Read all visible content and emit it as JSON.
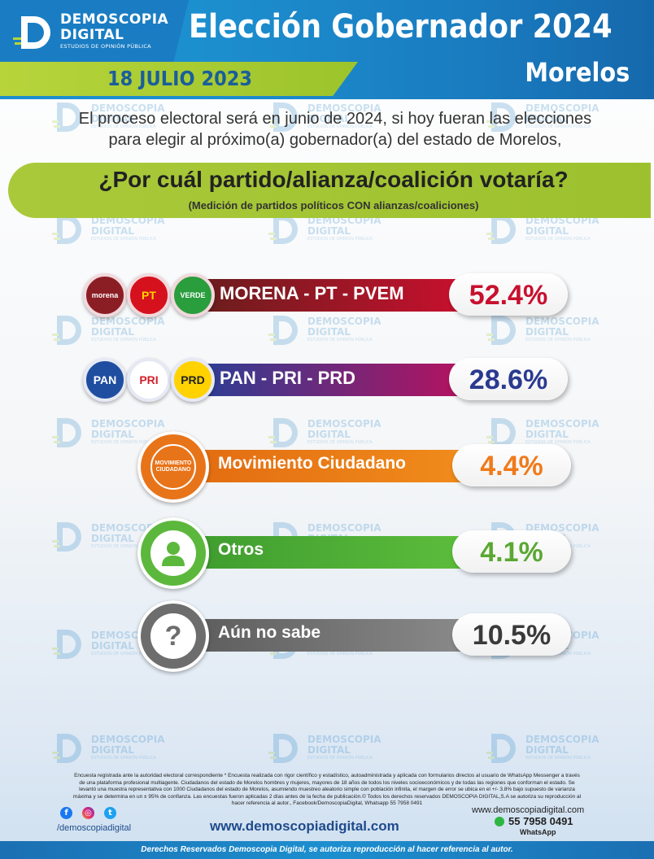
{
  "brand": {
    "name_line1": "DEMOSCOPIA",
    "name_line2": "DIGITAL",
    "tagline": "ESTUDIOS DE OPINIÓN PÚBLICA",
    "logo_letter": "D"
  },
  "header": {
    "title": "Elección Gobernador 2024",
    "date": "18 JULIO 2023",
    "state": "Morelos"
  },
  "intro": {
    "line1": "El proceso electoral será en junio de 2024, si hoy fueran las elecciones",
    "line2": "para elegir al próximo(a) gobernador(a) del estado de Morelos,"
  },
  "question": {
    "text": "¿Por cuál partido/alianza/coalición votaría?",
    "subtitle": "(Medición de partidos políticos CON alianzas/coaliciones)"
  },
  "chart_data": {
    "type": "bar",
    "categories": [
      "MORENA - PT - PVEM",
      "PAN - PRI - PRD",
      "Movimiento Ciudadano",
      "Otros",
      "Aún no sabe"
    ],
    "values": [
      52.4,
      28.6,
      4.4,
      4.1,
      10.5
    ],
    "value_labels": [
      "52.4%",
      "28.6%",
      "4.4%",
      "4.1%",
      "10.5%"
    ],
    "unit": "%"
  },
  "rows": [
    {
      "label": "MORENA - PT - PVEM",
      "value_label": "52.4%",
      "bar_color_from": "#6b1d1d",
      "bar_color_to": "#c8102e",
      "pct_color": "#c8102e",
      "logos": [
        {
          "text": "morena",
          "icon": "morena-logo-icon",
          "bg": "#8b1e24",
          "fg": "#ffffff"
        },
        {
          "text": "PT",
          "icon": "pt-logo-icon",
          "bg": "#d6111e",
          "fg": "#ffd400"
        },
        {
          "text": "VERDE",
          "icon": "pvem-logo-icon",
          "bg": "#2a9d3c",
          "fg": "#ffffff"
        }
      ]
    },
    {
      "label": "PAN - PRI - PRD",
      "value_label": "28.6%",
      "bar_color_from": "#2d3e94",
      "bar_color_to": "#b5125f",
      "pct_color": "#2b3a8f",
      "logos": [
        {
          "text": "PAN",
          "icon": "pan-logo-icon",
          "bg": "#1f4ea1",
          "fg": "#ffffff"
        },
        {
          "text": "PRI",
          "icon": "pri-logo-icon",
          "bg": "#ffffff",
          "fg": "#d11f2a"
        },
        {
          "text": "PRD",
          "icon": "prd-logo-icon",
          "bg": "#ffd200",
          "fg": "#222222"
        }
      ]
    },
    {
      "label": "Movimiento Ciudadano",
      "value_label": "4.4%",
      "bar_color_from": "#e26a10",
      "bar_color_to": "#f08c1c",
      "pct_color": "#f07a1a",
      "icon_text": "MOVIMIENTO CIUDADANO",
      "icon": "movimiento-ciudadano-logo-icon",
      "circle_color": "#e8741a"
    },
    {
      "label": "Otros",
      "value_label": "4.1%",
      "bar_color_from": "#3d9a2e",
      "bar_color_to": "#5cbd3c",
      "pct_color": "#5aa832",
      "icon": "person-icon",
      "circle_color": "#5cb83c"
    },
    {
      "label": "Aún no sabe",
      "value_label": "10.5%",
      "bar_color_from": "#5a5a5a",
      "bar_color_to": "#8a8a8a",
      "pct_color": "#3a3a3a",
      "icon": "question-mark-icon",
      "icon_text": "?",
      "circle_color": "#6d6d6d"
    }
  ],
  "footer": {
    "disclaimer_1": "Encuesta registrada ante la autoridad electoral correspondiente * Encuesta realizada con rigor científico y estadístico, autoadministrada y aplicada con formularios directos al usuario de WhatsApp Messenger a través",
    "disclaimer_2": "de una plataforma profesional multiagente. Ciudadanos del estado de Morelos hombres y mujeres, mayores de 18 años de todos los niveles socioeconómicos y de todas las regiones que conforman el estado. Se",
    "disclaimer_3": "levantó una muestra representativa con 1000 Ciudadanos del estado de Morelos, asumiendo muestreo aleatorio simple con población infinita, el margen de error se ubica en el +/- 3.8% bajo supuesto de varianza",
    "disclaimer_4": "máxima y se determina en un ± 95% de confianza. Las encuestas fueron aplicadas 2 días antes de la fecha de publicación.© Todos los derechos reservados DEMOSCOPIA DIGITAL,S.A se autoriza su reproducción al",
    "disclaimer_5": "hacer referencia al autor., Facebook/DemoscopiaDigital, Whatsapp 55 7958 0491",
    "social_handle": "/demoscopiadigital",
    "website": "www.demoscopiadigital.com",
    "website_small": "www.demoscopiadigital.com",
    "phone": "55 7958 0491",
    "whatsapp_label": "WhatsApp",
    "rights": "Derechos Reservados Demoscopia Digital, se autoriza reproducción al hacer referencia al autor."
  }
}
